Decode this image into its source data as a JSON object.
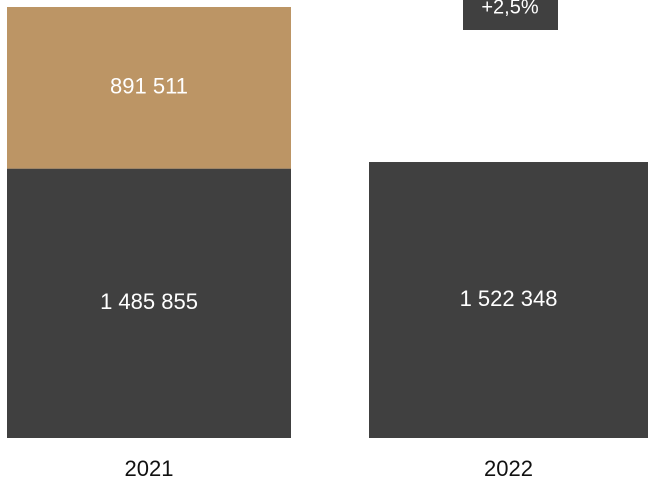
{
  "chart_data": {
    "type": "bar",
    "stacked": true,
    "categories": [
      "2021",
      "2022"
    ],
    "series": [
      {
        "color": "#404040",
        "values": [
          1485855,
          1522348
        ],
        "value_labels": [
          "1 485 855",
          "1 522 348"
        ]
      },
      {
        "color": "#bc9565",
        "values": [
          891511,
          null
        ],
        "value_labels": [
          "891 511",
          null
        ]
      }
    ],
    "annotation": "+2,5%"
  }
}
